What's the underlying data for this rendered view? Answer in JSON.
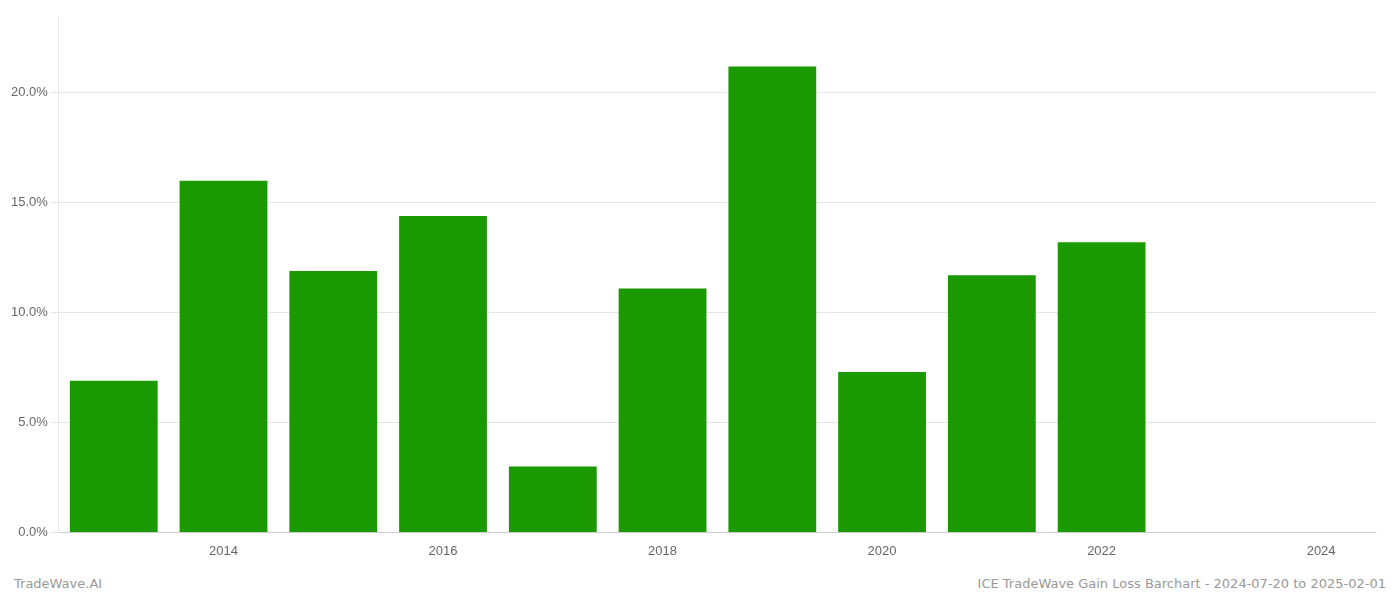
{
  "chart_data": {
    "type": "bar",
    "x": [
      2013,
      2014,
      2015,
      2016,
      2017,
      2018,
      2019,
      2020,
      2021,
      2022
    ],
    "values": [
      0.069,
      0.16,
      0.119,
      0.144,
      0.03,
      0.111,
      0.212,
      0.073,
      0.117,
      0.132
    ],
    "color": "#1a9a00",
    "xlim": [
      2012.5,
      2024.5
    ],
    "xticks": [
      2014,
      2016,
      2018,
      2020,
      2022,
      2024
    ],
    "ylim": [
      0,
      0.235
    ],
    "yticks": [
      {
        "value": 0.0,
        "label": "0.0%"
      },
      {
        "value": 0.05,
        "label": "5.0%"
      },
      {
        "value": 0.1,
        "label": "10.0%"
      },
      {
        "value": 0.15,
        "label": "15.0%"
      },
      {
        "value": 0.2,
        "label": "20.0%"
      }
    ],
    "grid": true,
    "annotations": [
      "TradeWave.AI",
      "ICE TradeWave Gain Loss Barchart - 2024-07-20 to 2025-02-01"
    ]
  }
}
